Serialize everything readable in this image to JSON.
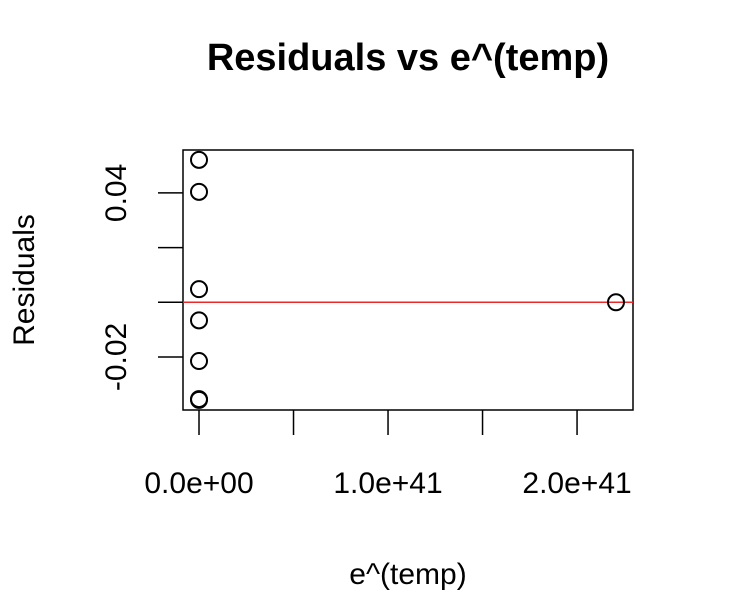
{
  "chart_data": {
    "type": "scatter",
    "title": "Residuals vs e^(temp)",
    "xlabel": "e^(temp)",
    "ylabel": "Residuals",
    "series": [
      {
        "color": "#000000",
        "x": [
          0,
          0,
          0,
          0,
          0,
          0,
          0,
          2.206e+41
        ],
        "values": [
          0.0521,
          0.0404,
          0.0048,
          -0.0066,
          -0.0215,
          -0.0354,
          -0.0357,
          0
        ]
      }
    ],
    "hline": {
      "value": 0,
      "color": "#e82a2a"
    },
    "xlim": [
      -8.47e+39,
      2.296e+41
    ],
    "xticks": [
      {
        "value": 0,
        "label": "0.0e+00"
      },
      {
        "value": 5e+40,
        "label": null
      },
      {
        "value": 1e+41,
        "label": "1.0e+41"
      },
      {
        "value": 1.5e+41,
        "label": null
      },
      {
        "value": 2e+41,
        "label": "2.0e+41"
      }
    ],
    "ylim": [
      -0.0394,
      0.0557
    ],
    "yticks": [
      {
        "value": -0.02,
        "label": "-0.02"
      },
      {
        "value": 0,
        "label": null
      },
      {
        "value": 0.02,
        "label": null
      },
      {
        "value": 0.04,
        "label": "0.04"
      }
    ],
    "grid": false
  }
}
